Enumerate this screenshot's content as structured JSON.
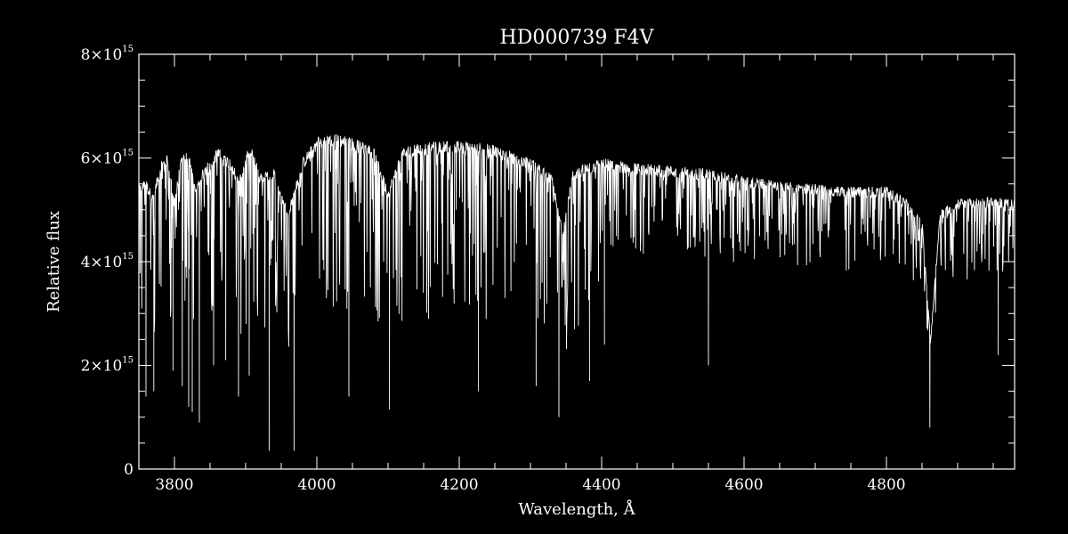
{
  "chart_data": {
    "type": "line",
    "title": "HD000739   F4V",
    "xlabel": "Wavelength, Å",
    "ylabel": "Relative flux",
    "xlim": [
      3750,
      4980
    ],
    "ylim": [
      0,
      8000000000000000.0
    ],
    "grid": false,
    "x_ticks": [
      3800,
      4000,
      4200,
      4400,
      4600,
      4800
    ],
    "x_tick_labels": [
      "3800",
      "4000",
      "4200",
      "4400",
      "4600",
      "4800"
    ],
    "y_ticks": [
      {
        "value": 0,
        "label": "0",
        "mantissa": "",
        "exponent": ""
      },
      {
        "value": 2000000000000000.0,
        "label": "",
        "mantissa": "2×10",
        "exponent": "15"
      },
      {
        "value": 4000000000000000.0,
        "label": "",
        "mantissa": "4×10",
        "exponent": "15"
      },
      {
        "value": 6000000000000000.0,
        "label": "",
        "mantissa": "6×10",
        "exponent": "15"
      },
      {
        "value": 8000000000000000.0,
        "label": "",
        "mantissa": "8×10",
        "exponent": "15"
      }
    ],
    "series": [
      {
        "color": "#ffffff",
        "continuum": [
          [
            3750,
            5.5
          ],
          [
            3790,
            5.8
          ],
          [
            3850,
            6.0
          ],
          [
            3900,
            6.1
          ],
          [
            3960,
            6.3
          ],
          [
            4000,
            6.45
          ],
          [
            4050,
            6.4
          ],
          [
            4100,
            6.3
          ],
          [
            4200,
            6.25
          ],
          [
            4300,
            6.0
          ],
          [
            4350,
            5.75
          ],
          [
            4400,
            5.9
          ],
          [
            4500,
            5.75
          ],
          [
            4600,
            5.55
          ],
          [
            4700,
            5.4
          ],
          [
            4800,
            5.35
          ],
          [
            4900,
            5.15
          ],
          [
            4980,
            5.1
          ]
        ],
        "upper_envelope": [
          [
            3750,
            5.5
          ],
          [
            3760,
            5.6
          ],
          [
            3770,
            5.3
          ],
          [
            3780,
            5.9
          ],
          [
            3790,
            6.1
          ],
          [
            3800,
            5.2
          ],
          [
            3810,
            6.1
          ],
          [
            3820,
            6.2
          ],
          [
            3830,
            5.4
          ],
          [
            3840,
            5.8
          ],
          [
            3860,
            6.2
          ],
          [
            3880,
            6.0
          ],
          [
            3890,
            5.6
          ],
          [
            3900,
            6.1
          ],
          [
            3910,
            6.2
          ],
          [
            3920,
            5.7
          ],
          [
            3940,
            5.8
          ],
          [
            3950,
            5.3
          ],
          [
            3960,
            5.0
          ],
          [
            3980,
            6.0
          ],
          [
            4000,
            6.4
          ],
          [
            4020,
            6.5
          ],
          [
            4050,
            6.4
          ],
          [
            4080,
            6.2
          ],
          [
            4100,
            5.4
          ],
          [
            4120,
            6.2
          ],
          [
            4150,
            6.3
          ],
          [
            4200,
            6.35
          ],
          [
            4250,
            6.25
          ],
          [
            4300,
            6.0
          ],
          [
            4330,
            5.7
          ],
          [
            4345,
            4.6
          ],
          [
            4360,
            5.8
          ],
          [
            4400,
            6.0
          ],
          [
            4450,
            5.9
          ],
          [
            4500,
            5.85
          ],
          [
            4550,
            5.8
          ],
          [
            4600,
            5.65
          ],
          [
            4650,
            5.55
          ],
          [
            4700,
            5.5
          ],
          [
            4750,
            5.45
          ],
          [
            4800,
            5.45
          ],
          [
            4830,
            5.2
          ],
          [
            4850,
            4.8
          ],
          [
            4862,
            2.5
          ],
          [
            4875,
            5.0
          ],
          [
            4900,
            5.2
          ],
          [
            4940,
            5.25
          ],
          [
            4980,
            5.2
          ]
        ],
        "absorption_lines": [
          {
            "wavelength": 3760,
            "flux": 1.4
          },
          {
            "wavelength": 3771,
            "flux": 1.5
          },
          {
            "wavelength": 3798,
            "flux": 1.9
          },
          {
            "wavelength": 3811,
            "flux": 1.6
          },
          {
            "wavelength": 3820,
            "flux": 1.2
          },
          {
            "wavelength": 3825,
            "flux": 1.1
          },
          {
            "wavelength": 3835,
            "flux": 0.9
          },
          {
            "wavelength": 3855,
            "flux": 2.0
          },
          {
            "wavelength": 3872,
            "flux": 2.1
          },
          {
            "wavelength": 3890,
            "flux": 1.4
          },
          {
            "wavelength": 3905,
            "flux": 1.8
          },
          {
            "wavelength": 3933,
            "flux": 0.35
          },
          {
            "wavelength": 3968,
            "flux": 0.35
          },
          {
            "wavelength": 4045,
            "flux": 1.4
          },
          {
            "wavelength": 4102,
            "flux": 1.15
          },
          {
            "wavelength": 4227,
            "flux": 1.5
          },
          {
            "wavelength": 4308,
            "flux": 1.6
          },
          {
            "wavelength": 4340,
            "flux": 1.0
          },
          {
            "wavelength": 4383,
            "flux": 1.7
          },
          {
            "wavelength": 4404,
            "flux": 2.4
          },
          {
            "wavelength": 4550,
            "flux": 2.0
          },
          {
            "wavelength": 4861,
            "flux": 0.8
          },
          {
            "wavelength": 4957,
            "flux": 2.2
          }
        ]
      }
    ]
  }
}
